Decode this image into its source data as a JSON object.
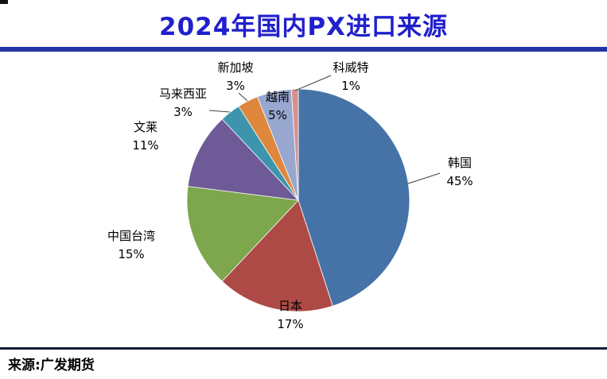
{
  "footer": {
    "source": "来源:广发期货"
  },
  "chart_data": {
    "type": "pie",
    "title": "2024年国内PX进口来源",
    "start_angle_deg": 0,
    "direction": "clockwise",
    "legend": "none",
    "label_format": "name above percent, outside slices",
    "slices": [
      {
        "label": "韩国",
        "value": 45,
        "color": "#4573A7"
      },
      {
        "label": "日本",
        "value": 17,
        "color": "#AE4A45"
      },
      {
        "label": "中国台湾",
        "value": 15,
        "color": "#7EA64D"
      },
      {
        "label": "文莱",
        "value": 11,
        "color": "#6E5A97"
      },
      {
        "label": "马来西亚",
        "value": 3,
        "color": "#3C95AD"
      },
      {
        "label": "新加坡",
        "value": 3,
        "color": "#DE873D"
      },
      {
        "label": "越南",
        "value": 5,
        "color": "#98A7CF"
      },
      {
        "label": "科威特",
        "value": 1,
        "color": "#D6918F"
      }
    ],
    "accent_colors": {
      "title_blue": "#2020CC",
      "top_rule_blue": "#2136A4",
      "bottom_rule_navy": "#131C38"
    }
  }
}
